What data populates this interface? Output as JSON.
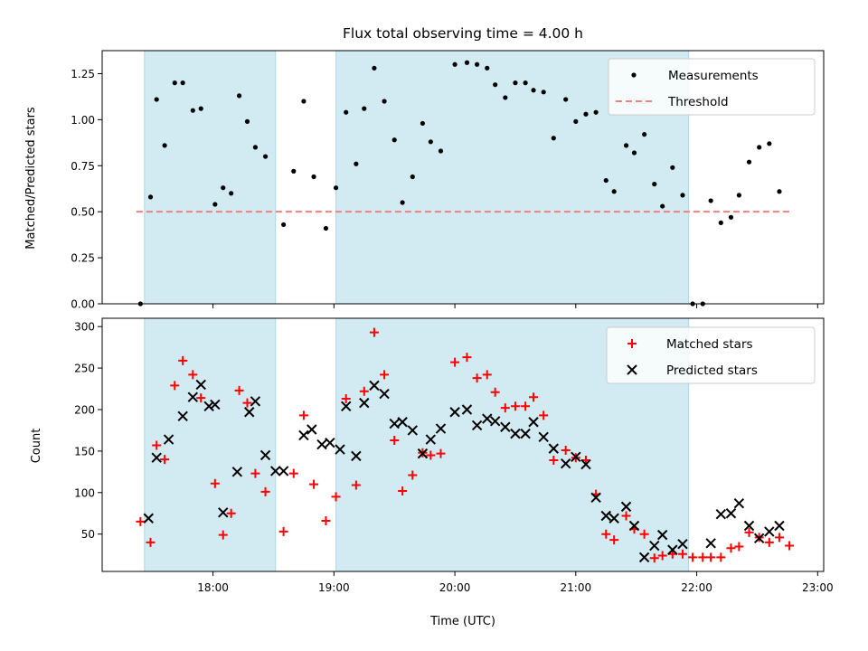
{
  "chart_data": [
    {
      "type": "scatter",
      "title": "Flux total observing time = 4.00 h",
      "xlabel": "",
      "ylabel": "Matched/Predicted stars",
      "ylim": [
        0,
        1.375
      ],
      "yticks": [
        "0.00",
        "0.25",
        "0.50",
        "0.75",
        "1.00",
        "1.25"
      ],
      "shaded_spans": [
        [
          "17:26",
          "18:31"
        ],
        [
          "19:01",
          "21:56"
        ]
      ],
      "shade_color": "#add8e6",
      "legend": {
        "placement": "top-right",
        "entries": [
          "Measurements",
          "Threshold"
        ]
      },
      "threshold": {
        "name": "Threshold",
        "value": 0.5,
        "x_range": [
          "17:22",
          "22:47"
        ],
        "color": "#f08080",
        "style": "dashed"
      },
      "series": [
        {
          "name": "Measurements",
          "color": "#000000",
          "marker": "dot",
          "points": [
            [
              "17:24",
              0.0
            ],
            [
              "17:29",
              0.58
            ],
            [
              "17:32",
              1.11
            ],
            [
              "17:36",
              0.86
            ],
            [
              "17:41",
              1.2
            ],
            [
              "17:45",
              1.2
            ],
            [
              "17:50",
              1.05
            ],
            [
              "17:54",
              1.06
            ],
            [
              "18:01",
              0.54
            ],
            [
              "18:05",
              0.63
            ],
            [
              "18:09",
              0.6
            ],
            [
              "18:13",
              1.13
            ],
            [
              "18:17",
              0.99
            ],
            [
              "18:21",
              0.85
            ],
            [
              "18:26",
              0.8
            ],
            [
              "18:35",
              0.43
            ],
            [
              "18:40",
              0.72
            ],
            [
              "18:45",
              1.1
            ],
            [
              "18:50",
              0.69
            ],
            [
              "18:56",
              0.41
            ],
            [
              "19:01",
              0.63
            ],
            [
              "19:06",
              1.04
            ],
            [
              "19:11",
              0.76
            ],
            [
              "19:15",
              1.06
            ],
            [
              "19:20",
              1.28
            ],
            [
              "19:25",
              1.1
            ],
            [
              "19:30",
              0.89
            ],
            [
              "19:34",
              0.55
            ],
            [
              "19:39",
              0.69
            ],
            [
              "19:44",
              0.98
            ],
            [
              "19:48",
              0.88
            ],
            [
              "19:53",
              0.83
            ],
            [
              "20:00",
              1.3
            ],
            [
              "20:06",
              1.31
            ],
            [
              "20:11",
              1.3
            ],
            [
              "20:16",
              1.28
            ],
            [
              "20:20",
              1.19
            ],
            [
              "20:25",
              1.12
            ],
            [
              "20:30",
              1.2
            ],
            [
              "20:35",
              1.2
            ],
            [
              "20:39",
              1.16
            ],
            [
              "20:44",
              1.15
            ],
            [
              "20:49",
              0.9
            ],
            [
              "20:55",
              1.11
            ],
            [
              "21:00",
              0.99
            ],
            [
              "21:05",
              1.03
            ],
            [
              "21:10",
              1.04
            ],
            [
              "21:15",
              0.67
            ],
            [
              "21:19",
              0.61
            ],
            [
              "21:25",
              0.86
            ],
            [
              "21:29",
              0.82
            ],
            [
              "21:34",
              0.92
            ],
            [
              "21:39",
              0.65
            ],
            [
              "21:43",
              0.53
            ],
            [
              "21:48",
              0.74
            ],
            [
              "21:53",
              0.59
            ],
            [
              "21:58",
              0.0
            ],
            [
              "22:03",
              0.0
            ],
            [
              "22:07",
              0.56
            ],
            [
              "22:12",
              0.44
            ],
            [
              "22:17",
              0.47
            ],
            [
              "22:21",
              0.59
            ],
            [
              "22:26",
              0.77
            ],
            [
              "22:31",
              0.85
            ],
            [
              "22:36",
              0.87
            ],
            [
              "22:41",
              0.61
            ]
          ]
        }
      ]
    },
    {
      "type": "scatter",
      "title": "",
      "xlabel": "Time (UTC)",
      "ylabel": "Count",
      "ylim": [
        5,
        310
      ],
      "yticks": [
        "50",
        "100",
        "150",
        "200",
        "250",
        "300"
      ],
      "xlim": [
        "17:05",
        "23:03"
      ],
      "xticks": [
        "18:00",
        "19:00",
        "20:00",
        "21:00",
        "22:00",
        "23:00"
      ],
      "shaded_spans": [
        [
          "17:26",
          "18:31"
        ],
        [
          "19:01",
          "21:56"
        ]
      ],
      "shade_color": "#add8e6",
      "legend": {
        "placement": "top-right",
        "entries": [
          "Matched stars",
          "Predicted stars"
        ]
      },
      "series": [
        {
          "name": "Matched stars",
          "color": "#ff0000",
          "marker": "plus",
          "points": [
            [
              "17:24",
              65
            ],
            [
              "17:29",
              40
            ],
            [
              "17:32",
              157
            ],
            [
              "17:36",
              140
            ],
            [
              "17:41",
              229
            ],
            [
              "17:45",
              259
            ],
            [
              "17:50",
              242
            ],
            [
              "17:54",
              214
            ],
            [
              "18:01",
              111
            ],
            [
              "18:05",
              49
            ],
            [
              "18:09",
              75
            ],
            [
              "18:13",
              223
            ],
            [
              "18:17",
              208
            ],
            [
              "18:21",
              123
            ],
            [
              "18:26",
              101
            ],
            [
              "18:35",
              53
            ],
            [
              "18:40",
              123
            ],
            [
              "18:45",
              193
            ],
            [
              "18:50",
              110
            ],
            [
              "18:56",
              66
            ],
            [
              "19:01",
              95
            ],
            [
              "19:06",
              213
            ],
            [
              "19:11",
              109
            ],
            [
              "19:15",
              222
            ],
            [
              "19:20",
              293
            ],
            [
              "19:25",
              242
            ],
            [
              "19:30",
              163
            ],
            [
              "19:34",
              102
            ],
            [
              "19:39",
              121
            ],
            [
              "19:44",
              148
            ],
            [
              "19:48",
              145
            ],
            [
              "19:53",
              147
            ],
            [
              "20:00",
              257
            ],
            [
              "20:06",
              263
            ],
            [
              "20:11",
              238
            ],
            [
              "20:16",
              242
            ],
            [
              "20:20",
              221
            ],
            [
              "20:25",
              202
            ],
            [
              "20:30",
              204
            ],
            [
              "20:35",
              204
            ],
            [
              "20:39",
              215
            ],
            [
              "20:44",
              193
            ],
            [
              "20:49",
              139
            ],
            [
              "20:55",
              151
            ],
            [
              "21:00",
              142
            ],
            [
              "21:05",
              139
            ],
            [
              "21:10",
              98
            ],
            [
              "21:15",
              50
            ],
            [
              "21:19",
              43
            ],
            [
              "21:25",
              72
            ],
            [
              "21:29",
              56
            ],
            [
              "21:34",
              50
            ],
            [
              "21:39",
              21
            ],
            [
              "21:43",
              24
            ],
            [
              "21:48",
              26
            ],
            [
              "21:53",
              26
            ],
            [
              "21:58",
              22
            ],
            [
              "22:03",
              22
            ],
            [
              "22:07",
              22
            ],
            [
              "22:12",
              22
            ],
            [
              "22:17",
              33
            ],
            [
              "22:21",
              35
            ],
            [
              "22:26",
              52
            ],
            [
              "22:31",
              46
            ],
            [
              "22:36",
              40
            ],
            [
              "22:41",
              46
            ],
            [
              "22:46",
              36
            ]
          ]
        },
        {
          "name": "Predicted stars",
          "color": "#000000",
          "marker": "x",
          "points": [
            [
              "17:28",
              69
            ],
            [
              "17:32",
              142
            ],
            [
              "17:38",
              164
            ],
            [
              "17:45",
              192
            ],
            [
              "17:50",
              215
            ],
            [
              "17:54",
              230
            ],
            [
              "17:58",
              204
            ],
            [
              "18:01",
              206
            ],
            [
              "18:05",
              76
            ],
            [
              "18:12",
              125
            ],
            [
              "18:18",
              197
            ],
            [
              "18:21",
              210
            ],
            [
              "18:26",
              145
            ],
            [
              "18:31",
              126
            ],
            [
              "18:35",
              126
            ],
            [
              "18:45",
              169
            ],
            [
              "18:49",
              176
            ],
            [
              "18:54",
              158
            ],
            [
              "18:58",
              160
            ],
            [
              "19:03",
              152
            ],
            [
              "19:06",
              204
            ],
            [
              "19:11",
              144
            ],
            [
              "19:15",
              208
            ],
            [
              "19:20",
              229
            ],
            [
              "19:25",
              219
            ],
            [
              "19:30",
              183
            ],
            [
              "19:34",
              185
            ],
            [
              "19:39",
              175
            ],
            [
              "19:44",
              147
            ],
            [
              "19:48",
              164
            ],
            [
              "19:53",
              177
            ],
            [
              "20:00",
              197
            ],
            [
              "20:06",
              200
            ],
            [
              "20:11",
              181
            ],
            [
              "20:16",
              189
            ],
            [
              "20:20",
              186
            ],
            [
              "20:25",
              179
            ],
            [
              "20:30",
              171
            ],
            [
              "20:35",
              171
            ],
            [
              "20:39",
              185
            ],
            [
              "20:44",
              167
            ],
            [
              "20:49",
              153
            ],
            [
              "20:55",
              135
            ],
            [
              "21:00",
              143
            ],
            [
              "21:05",
              134
            ],
            [
              "21:10",
              94
            ],
            [
              "21:15",
              72
            ],
            [
              "21:19",
              69
            ],
            [
              "21:25",
              83
            ],
            [
              "21:29",
              60
            ],
            [
              "21:34",
              22
            ],
            [
              "21:39",
              36
            ],
            [
              "21:43",
              49
            ],
            [
              "21:48",
              31
            ],
            [
              "21:53",
              38
            ],
            [
              "22:07",
              39
            ],
            [
              "22:12",
              74
            ],
            [
              "22:17",
              75
            ],
            [
              "22:21",
              87
            ],
            [
              "22:26",
              60
            ],
            [
              "22:31",
              45
            ],
            [
              "22:36",
              53
            ],
            [
              "22:41",
              60
            ]
          ]
        }
      ]
    }
  ]
}
